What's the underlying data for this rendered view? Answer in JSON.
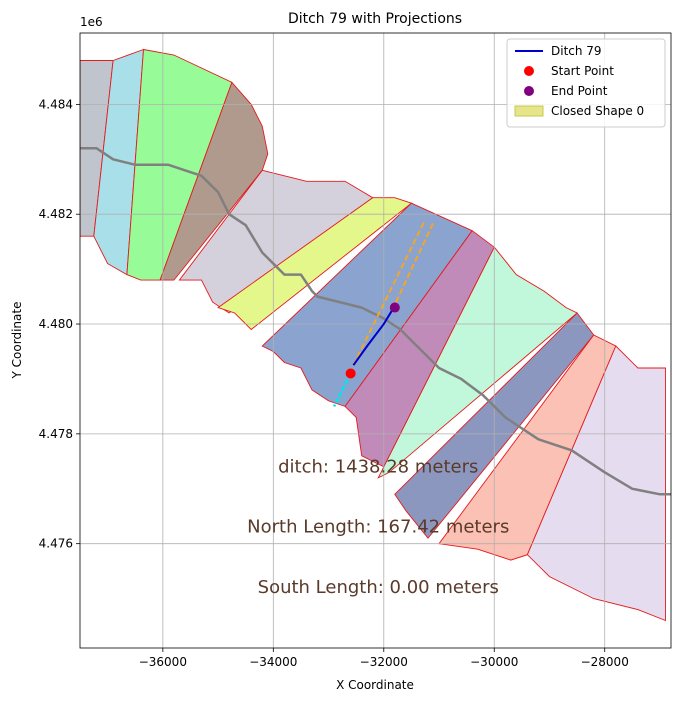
{
  "chart_data": {
    "type": "map-plot",
    "title": "Ditch 79 with Projections",
    "xlabel": "X Coordinate",
    "ylabel": "Y Coordinate",
    "y_offset_label": "1e6",
    "xlim": [
      -37500,
      -26800
    ],
    "ylim": [
      4474100,
      4485300
    ],
    "x_ticks": [
      -36000,
      -34000,
      -32000,
      -30000,
      -28000
    ],
    "x_tick_labels": [
      "−36000",
      "−34000",
      "−32000",
      "−30000",
      "−28000"
    ],
    "y_ticks": [
      4476000,
      4478000,
      4480000,
      4482000,
      4484000
    ],
    "y_tick_labels": [
      "4.476",
      "4.478",
      "4.480",
      "4.482",
      "4.484"
    ],
    "grid": true,
    "legend_position": "top-right",
    "legend": [
      {
        "label": "Ditch 79",
        "marker": "line",
        "color": "#0000cc"
      },
      {
        "label": "Start Point",
        "marker": "dot",
        "color": "#ff0000"
      },
      {
        "label": "End Point",
        "marker": "dot",
        "color": "#800080"
      },
      {
        "label": "Closed Shape 0",
        "marker": "patch",
        "color": "#e5e58a"
      }
    ],
    "polygons": [
      {
        "fill": "#c0c4cc",
        "points": [
          [
            -37500,
            4484800
          ],
          [
            -36900,
            4484800
          ],
          [
            -37250,
            4481600
          ],
          [
            -37500,
            4481600
          ]
        ]
      },
      {
        "fill": "#a8dfe9",
        "points": [
          [
            -36900,
            4484800
          ],
          [
            -36350,
            4485000
          ],
          [
            -36650,
            4480900
          ],
          [
            -37000,
            4481100
          ],
          [
            -37250,
            4481600
          ]
        ]
      },
      {
        "fill": "#97fc97",
        "points": [
          [
            -36350,
            4485000
          ],
          [
            -35800,
            4484900
          ],
          [
            -34750,
            4484400
          ],
          [
            -36050,
            4480800
          ],
          [
            -36400,
            4480800
          ],
          [
            -36650,
            4480900
          ]
        ]
      },
      {
        "fill": "#b09a8e",
        "points": [
          [
            -34750,
            4484400
          ],
          [
            -34400,
            4484000
          ],
          [
            -34200,
            4483600
          ],
          [
            -34100,
            4483100
          ],
          [
            -34200,
            4482800
          ],
          [
            -35800,
            4480800
          ],
          [
            -36050,
            4480800
          ]
        ]
      },
      {
        "fill": "#d4d0dc",
        "points": [
          [
            -34200,
            4482800
          ],
          [
            -33800,
            4482700
          ],
          [
            -33400,
            4482600
          ],
          [
            -32700,
            4482600
          ],
          [
            -32200,
            4482300
          ],
          [
            -34800,
            4480200
          ],
          [
            -35100,
            4480400
          ],
          [
            -35300,
            4480800
          ],
          [
            -35700,
            4480800
          ]
        ]
      },
      {
        "fill": "#e3f78a",
        "points": [
          [
            -32200,
            4482300
          ],
          [
            -31800,
            4482300
          ],
          [
            -31500,
            4482200
          ],
          [
            -34400,
            4479900
          ],
          [
            -34700,
            4480200
          ],
          [
            -35000,
            4480300
          ]
        ]
      },
      {
        "fill": "#8aa3cf",
        "points": [
          [
            -31500,
            4482200
          ],
          [
            -30400,
            4481700
          ],
          [
            -32700,
            4478500
          ],
          [
            -33000,
            4478600
          ],
          [
            -33300,
            4478800
          ],
          [
            -33500,
            4479200
          ],
          [
            -33800,
            4479300
          ],
          [
            -34000,
            4479500
          ],
          [
            -34200,
            4479600
          ]
        ]
      },
      {
        "fill": "#c08ab9",
        "points": [
          [
            -30400,
            4481700
          ],
          [
            -30000,
            4481400
          ],
          [
            -32000,
            4477400
          ],
          [
            -32400,
            4477600
          ],
          [
            -32500,
            4478300
          ],
          [
            -32700,
            4478500
          ]
        ]
      },
      {
        "fill": "#c1f7da",
        "points": [
          [
            -30000,
            4481400
          ],
          [
            -29600,
            4480900
          ],
          [
            -29100,
            4480600
          ],
          [
            -28700,
            4480300
          ],
          [
            -28500,
            4480200
          ],
          [
            -31900,
            4477300
          ],
          [
            -32100,
            4477200
          ]
        ]
      },
      {
        "fill": "#8c97c0",
        "points": [
          [
            -28500,
            4480200
          ],
          [
            -28200,
            4479800
          ],
          [
            -31200,
            4476100
          ],
          [
            -31600,
            4476600
          ],
          [
            -31800,
            4476900
          ]
        ]
      },
      {
        "fill": "#fbc1b4",
        "points": [
          [
            -28200,
            4479800
          ],
          [
            -27800,
            4479600
          ],
          [
            -29400,
            4475800
          ],
          [
            -29700,
            4475700
          ],
          [
            -30300,
            4475900
          ],
          [
            -31000,
            4476000
          ]
        ]
      },
      {
        "fill": "#e6dcef",
        "points": [
          [
            -27800,
            4479600
          ],
          [
            -27400,
            4479200
          ],
          [
            -26900,
            4479200
          ],
          [
            -26900,
            4474600
          ],
          [
            -27400,
            4474800
          ],
          [
            -28200,
            4475000
          ],
          [
            -29000,
            4475400
          ],
          [
            -29400,
            4475800
          ]
        ]
      }
    ],
    "river_line": [
      [
        -37500,
        4483200
      ],
      [
        -37200,
        4483200
      ],
      [
        -36900,
        4483000
      ],
      [
        -36500,
        4482900
      ],
      [
        -36100,
        4482900
      ],
      [
        -35900,
        4482900
      ],
      [
        -35600,
        4482800
      ],
      [
        -35300,
        4482700
      ],
      [
        -35000,
        4482400
      ],
      [
        -34800,
        4482000
      ],
      [
        -34500,
        4481800
      ],
      [
        -34200,
        4481300
      ],
      [
        -33800,
        4480900
      ],
      [
        -33500,
        4480900
      ],
      [
        -33300,
        4480600
      ],
      [
        -33200,
        4480500
      ],
      [
        -32800,
        4480400
      ],
      [
        -32400,
        4480300
      ],
      [
        -32000,
        4480100
      ],
      [
        -31700,
        4479900
      ],
      [
        -31400,
        4479600
      ],
      [
        -31000,
        4479200
      ],
      [
        -30600,
        4479000
      ],
      [
        -30200,
        4478700
      ],
      [
        -29800,
        4478300
      ],
      [
        -29200,
        4477900
      ],
      [
        -28600,
        4477700
      ],
      [
        -28000,
        4477300
      ],
      [
        -27500,
        4477000
      ],
      [
        -27000,
        4476900
      ],
      [
        -26800,
        4476900
      ]
    ],
    "ditch_line": [
      [
        -32550,
        4479250
      ],
      [
        -32300,
        4479600
      ],
      [
        -32000,
        4480000
      ],
      [
        -31850,
        4480250
      ]
    ],
    "north_projections": [
      [
        [
          -32550,
          4479250
        ],
        [
          -31250,
          4481900
        ]
      ],
      [
        [
          -31850,
          4480250
        ],
        [
          -31100,
          4481850
        ]
      ]
    ],
    "south_projection": [
      [
        -32600,
        4479100
      ],
      [
        -32900,
        4478500
      ]
    ],
    "start_point": [
      -32600,
      4479100
    ],
    "end_point": [
      -31800,
      4480300
    ],
    "annotations": [
      {
        "text": "ditch: 1438.28 meters",
        "x": -32100,
        "y": 4477300
      },
      {
        "text": "North Length: 167.42 meters",
        "x": -32100,
        "y": 4476200
      },
      {
        "text": "South Length: 0.00 meters",
        "x": -32100,
        "y": 4475100
      }
    ]
  }
}
